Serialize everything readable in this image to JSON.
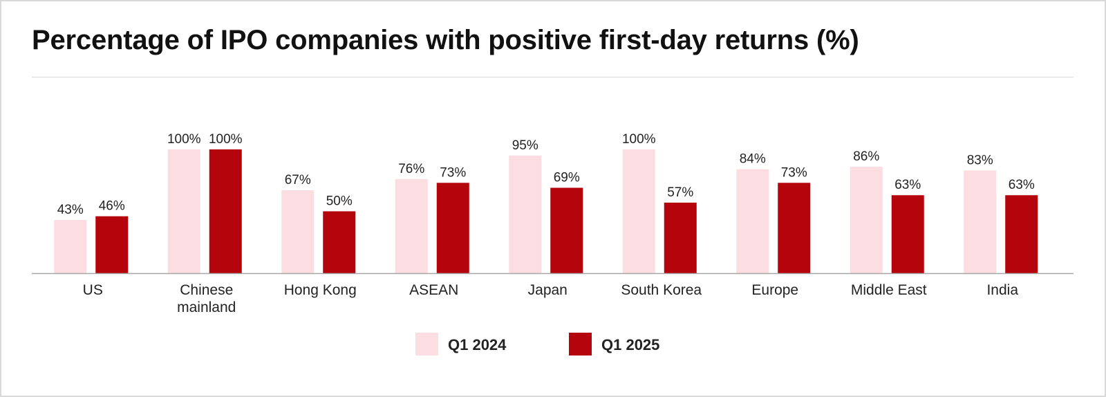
{
  "title": "Percentage of IPO companies with positive first-day returns (%)",
  "colors": {
    "series_1": "#fcdde2",
    "series_2": "#b3050b",
    "axis": "#a6a6a6"
  },
  "chart_data": {
    "type": "bar",
    "title": "Percentage of IPO companies with positive first-day returns (%)",
    "xlabel": "",
    "ylabel": "",
    "ylim": [
      0,
      100
    ],
    "grid": false,
    "legend_position": "bottom-center",
    "categories": [
      [
        "US"
      ],
      [
        "Chinese",
        "mainland"
      ],
      [
        "Hong Kong"
      ],
      [
        "ASEAN"
      ],
      [
        "Japan"
      ],
      [
        "South Korea"
      ],
      [
        "Europe"
      ],
      [
        "Middle East"
      ],
      [
        "India"
      ]
    ],
    "series": [
      {
        "name": "Q1 2024",
        "color": "#fcdde2",
        "values": [
          43,
          100,
          67,
          76,
          95,
          100,
          84,
          86,
          83
        ]
      },
      {
        "name": "Q1 2025",
        "color": "#b3050b",
        "values": [
          46,
          100,
          50,
          73,
          69,
          57,
          73,
          63,
          63
        ]
      }
    ],
    "value_suffix": "%"
  }
}
